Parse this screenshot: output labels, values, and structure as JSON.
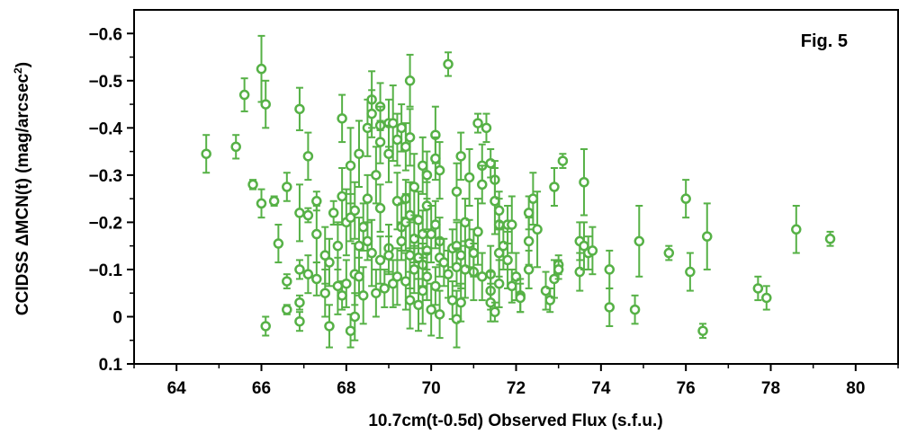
{
  "chart_data": {
    "type": "scatter",
    "title": "",
    "annotation": "Fig. 5",
    "xlabel": "10.7cm(t-0.5d) Observed Flux (s.f.u.)",
    "ylabel_main": "CCIDSS ΔMCN(t) (mag/arcsec",
    "ylabel_sup": "2",
    "ylabel_close": ")",
    "xlim": [
      63,
      81
    ],
    "ylim": [
      0.1,
      -0.65
    ],
    "y_inverted": true,
    "x_ticks": [
      64,
      66,
      68,
      70,
      72,
      74,
      76,
      78,
      80
    ],
    "x_tick_labels": [
      "64",
      "66",
      "68",
      "70",
      "72",
      "74",
      "76",
      "78",
      "80"
    ],
    "y_ticks": [
      -0.6,
      -0.5,
      -0.4,
      -0.3,
      -0.2,
      -0.1,
      0,
      0.1
    ],
    "y_tick_labels": [
      "−0.6",
      "−0.5",
      "−0.4",
      "−0.3",
      "−0.2",
      "−0.1",
      "0",
      "0.1"
    ],
    "grid": false,
    "marker_color": "#56b146",
    "marker": "open-circle-with-errorbars",
    "points": [
      [
        64.7,
        -0.345,
        0.04
      ],
      [
        65.4,
        -0.36,
        0.025
      ],
      [
        65.6,
        -0.47,
        0.035
      ],
      [
        65.8,
        -0.28,
        0.01
      ],
      [
        66.0,
        -0.525,
        0.07
      ],
      [
        66.0,
        -0.24,
        0.03
      ],
      [
        66.1,
        -0.45,
        0.05
      ],
      [
        66.1,
        0.02,
        0.02
      ],
      [
        66.3,
        -0.245,
        0.01
      ],
      [
        66.4,
        -0.155,
        0.04
      ],
      [
        66.6,
        -0.275,
        0.03
      ],
      [
        66.6,
        -0.075,
        0.015
      ],
      [
        66.6,
        -0.015,
        0.01
      ],
      [
        66.9,
        -0.44,
        0.045
      ],
      [
        66.9,
        -0.22,
        0.06
      ],
      [
        66.9,
        -0.1,
        0.02
      ],
      [
        66.9,
        -0.03,
        0.015
      ],
      [
        66.9,
        0.01,
        0.02
      ],
      [
        67.1,
        -0.34,
        0.05
      ],
      [
        67.1,
        -0.215,
        0.015
      ],
      [
        67.1,
        -0.09,
        0.04
      ],
      [
        67.3,
        -0.245,
        0.02
      ],
      [
        67.3,
        -0.175,
        0.06
      ],
      [
        67.3,
        -0.08,
        0.035
      ],
      [
        67.5,
        -0.13,
        0.06
      ],
      [
        67.5,
        -0.05,
        0.05
      ],
      [
        67.6,
        -0.115,
        0.05
      ],
      [
        67.6,
        0.02,
        0.045
      ],
      [
        67.7,
        -0.22,
        0.025
      ],
      [
        67.8,
        -0.15,
        0.05
      ],
      [
        67.8,
        -0.065,
        0.06
      ],
      [
        67.9,
        -0.42,
        0.05
      ],
      [
        67.9,
        -0.255,
        0.06
      ],
      [
        67.9,
        -0.045,
        0.03
      ],
      [
        68.0,
        -0.2,
        0.07
      ],
      [
        68.0,
        -0.07,
        0.05
      ],
      [
        68.1,
        -0.32,
        0.08
      ],
      [
        68.1,
        -0.21,
        0.05
      ],
      [
        68.1,
        0.03,
        0.035
      ],
      [
        68.2,
        -0.225,
        0.06
      ],
      [
        68.2,
        -0.09,
        0.065
      ],
      [
        68.2,
        0.0,
        0.05
      ],
      [
        68.3,
        -0.345,
        0.07
      ],
      [
        68.3,
        -0.15,
        0.06
      ],
      [
        68.3,
        -0.085,
        0.04
      ],
      [
        68.4,
        -0.19,
        0.05
      ],
      [
        68.4,
        -0.045,
        0.06
      ],
      [
        68.5,
        -0.4,
        0.06
      ],
      [
        68.5,
        -0.25,
        0.05
      ],
      [
        68.5,
        -0.16,
        0.04
      ],
      [
        68.6,
        -0.46,
        0.06
      ],
      [
        68.6,
        -0.43,
        0.05
      ],
      [
        68.6,
        -0.135,
        0.07
      ],
      [
        68.7,
        -0.3,
        0.06
      ],
      [
        68.7,
        -0.05,
        0.05
      ],
      [
        68.8,
        -0.445,
        0.05
      ],
      [
        68.8,
        -0.405,
        0.04
      ],
      [
        68.8,
        -0.37,
        0.045
      ],
      [
        68.8,
        -0.23,
        0.05
      ],
      [
        68.8,
        -0.12,
        0.05
      ],
      [
        68.9,
        -0.06,
        0.04
      ],
      [
        69.0,
        -0.41,
        0.05
      ],
      [
        69.0,
        -0.345,
        0.06
      ],
      [
        69.0,
        -0.145,
        0.05
      ],
      [
        69.0,
        -0.13,
        0.04
      ],
      [
        69.1,
        -0.07,
        0.05
      ],
      [
        69.1,
        -0.41,
        0.08
      ],
      [
        69.2,
        -0.375,
        0.055
      ],
      [
        69.2,
        -0.245,
        0.06
      ],
      [
        69.2,
        -0.085,
        0.06
      ],
      [
        69.3,
        -0.4,
        0.05
      ],
      [
        69.3,
        -0.19,
        0.05
      ],
      [
        69.3,
        -0.16,
        0.04
      ],
      [
        69.4,
        -0.36,
        0.05
      ],
      [
        69.4,
        -0.25,
        0.04
      ],
      [
        69.4,
        -0.2,
        0.06
      ],
      [
        69.4,
        -0.075,
        0.06
      ],
      [
        69.5,
        -0.5,
        0.055
      ],
      [
        69.5,
        -0.38,
        0.06
      ],
      [
        69.5,
        -0.215,
        0.07
      ],
      [
        69.5,
        -0.13,
        0.07
      ],
      [
        69.5,
        -0.035,
        0.06
      ],
      [
        69.6,
        -0.275,
        0.07
      ],
      [
        69.6,
        -0.165,
        0.05
      ],
      [
        69.6,
        -0.1,
        0.05
      ],
      [
        69.7,
        -0.205,
        0.06
      ],
      [
        69.7,
        -0.125,
        0.045
      ],
      [
        69.7,
        -0.025,
        0.055
      ],
      [
        69.8,
        -0.32,
        0.06
      ],
      [
        69.8,
        -0.175,
        0.05
      ],
      [
        69.8,
        -0.11,
        0.045
      ],
      [
        69.8,
        -0.055,
        0.07
      ],
      [
        69.9,
        -0.3,
        0.05
      ],
      [
        69.9,
        -0.235,
        0.05
      ],
      [
        69.9,
        -0.14,
        0.04
      ],
      [
        69.9,
        -0.085,
        0.05
      ],
      [
        70.0,
        -0.175,
        0.06
      ],
      [
        70.0,
        -0.015,
        0.055
      ],
      [
        70.1,
        -0.385,
        0.06
      ],
      [
        70.1,
        -0.335,
        0.045
      ],
      [
        70.1,
        -0.195,
        0.05
      ],
      [
        70.1,
        -0.065,
        0.04
      ],
      [
        70.2,
        -0.31,
        0.06
      ],
      [
        70.2,
        -0.16,
        0.05
      ],
      [
        70.2,
        -0.125,
        0.04
      ],
      [
        70.2,
        -0.005,
        0.05
      ],
      [
        70.3,
        -0.115,
        0.05
      ],
      [
        70.4,
        -0.535,
        0.025
      ],
      [
        70.4,
        -0.09,
        0.05
      ],
      [
        70.5,
        -0.145,
        0.04
      ],
      [
        70.5,
        -0.035,
        0.04
      ],
      [
        70.6,
        -0.265,
        0.06
      ],
      [
        70.6,
        -0.15,
        0.05
      ],
      [
        70.6,
        -0.105,
        0.04
      ],
      [
        70.6,
        0.005,
        0.06
      ],
      [
        70.7,
        -0.34,
        0.05
      ],
      [
        70.7,
        -0.13,
        0.07
      ],
      [
        70.7,
        -0.03,
        0.04
      ],
      [
        70.8,
        -0.2,
        0.05
      ],
      [
        70.8,
        -0.1,
        0.06
      ],
      [
        70.9,
        -0.295,
        0.06
      ],
      [
        70.9,
        -0.155,
        0.05
      ],
      [
        71.0,
        -0.095,
        0.06
      ],
      [
        71.0,
        -0.135,
        0.05
      ],
      [
        71.1,
        -0.41,
        0.02
      ],
      [
        71.1,
        -0.18,
        0.07
      ],
      [
        71.2,
        -0.32,
        0.045
      ],
      [
        71.2,
        -0.28,
        0.04
      ],
      [
        71.2,
        -0.085,
        0.05
      ],
      [
        71.3,
        -0.4,
        0.03
      ],
      [
        71.4,
        -0.325,
        0.03
      ],
      [
        71.4,
        -0.09,
        0.06
      ],
      [
        71.4,
        -0.055,
        0.04
      ],
      [
        71.4,
        -0.03,
        0.04
      ],
      [
        71.5,
        -0.29,
        0.04
      ],
      [
        71.5,
        -0.245,
        0.07
      ],
      [
        71.5,
        -0.01,
        0.02
      ],
      [
        71.6,
        -0.195,
        0.055
      ],
      [
        71.6,
        -0.225,
        0.04
      ],
      [
        71.6,
        -0.135,
        0.05
      ],
      [
        71.6,
        -0.07,
        0.05
      ],
      [
        71.7,
        -0.15,
        0.05
      ],
      [
        71.8,
        -0.195,
        0.04
      ],
      [
        71.8,
        -0.12,
        0.06
      ],
      [
        71.9,
        -0.195,
        0.06
      ],
      [
        71.9,
        -0.065,
        0.035
      ],
      [
        72.0,
        -0.085,
        0.05
      ],
      [
        72.1,
        -0.045,
        0.035
      ],
      [
        72.1,
        -0.04,
        0.03
      ],
      [
        72.3,
        -0.22,
        0.035
      ],
      [
        72.3,
        -0.16,
        0.05
      ],
      [
        72.3,
        -0.1,
        0.04
      ],
      [
        72.4,
        -0.25,
        0.055
      ],
      [
        72.5,
        -0.185,
        0.08
      ],
      [
        72.7,
        -0.055,
        0.04
      ],
      [
        72.8,
        -0.035,
        0.025
      ],
      [
        72.9,
        -0.275,
        0.04
      ],
      [
        72.9,
        -0.08,
        0.04
      ],
      [
        73.0,
        -0.11,
        0.02
      ],
      [
        73.0,
        -0.1,
        0.02
      ],
      [
        73.1,
        -0.33,
        0.015
      ],
      [
        73.5,
        -0.16,
        0.04
      ],
      [
        73.5,
        -0.095,
        0.04
      ],
      [
        73.6,
        -0.285,
        0.07
      ],
      [
        73.6,
        -0.15,
        0.05
      ],
      [
        73.7,
        -0.135,
        0.035
      ],
      [
        73.8,
        -0.14,
        0.05
      ],
      [
        74.2,
        -0.1,
        0.04
      ],
      [
        74.2,
        -0.02,
        0.04
      ],
      [
        74.8,
        -0.015,
        0.03
      ],
      [
        74.9,
        -0.16,
        0.075
      ],
      [
        75.6,
        -0.135,
        0.015
      ],
      [
        76.0,
        -0.25,
        0.04
      ],
      [
        76.1,
        -0.095,
        0.04
      ],
      [
        76.4,
        0.03,
        0.015
      ],
      [
        76.5,
        -0.17,
        0.07
      ],
      [
        77.7,
        -0.06,
        0.025
      ],
      [
        77.9,
        -0.04,
        0.025
      ],
      [
        78.6,
        -0.185,
        0.05
      ],
      [
        79.4,
        -0.165,
        0.015
      ]
    ]
  }
}
